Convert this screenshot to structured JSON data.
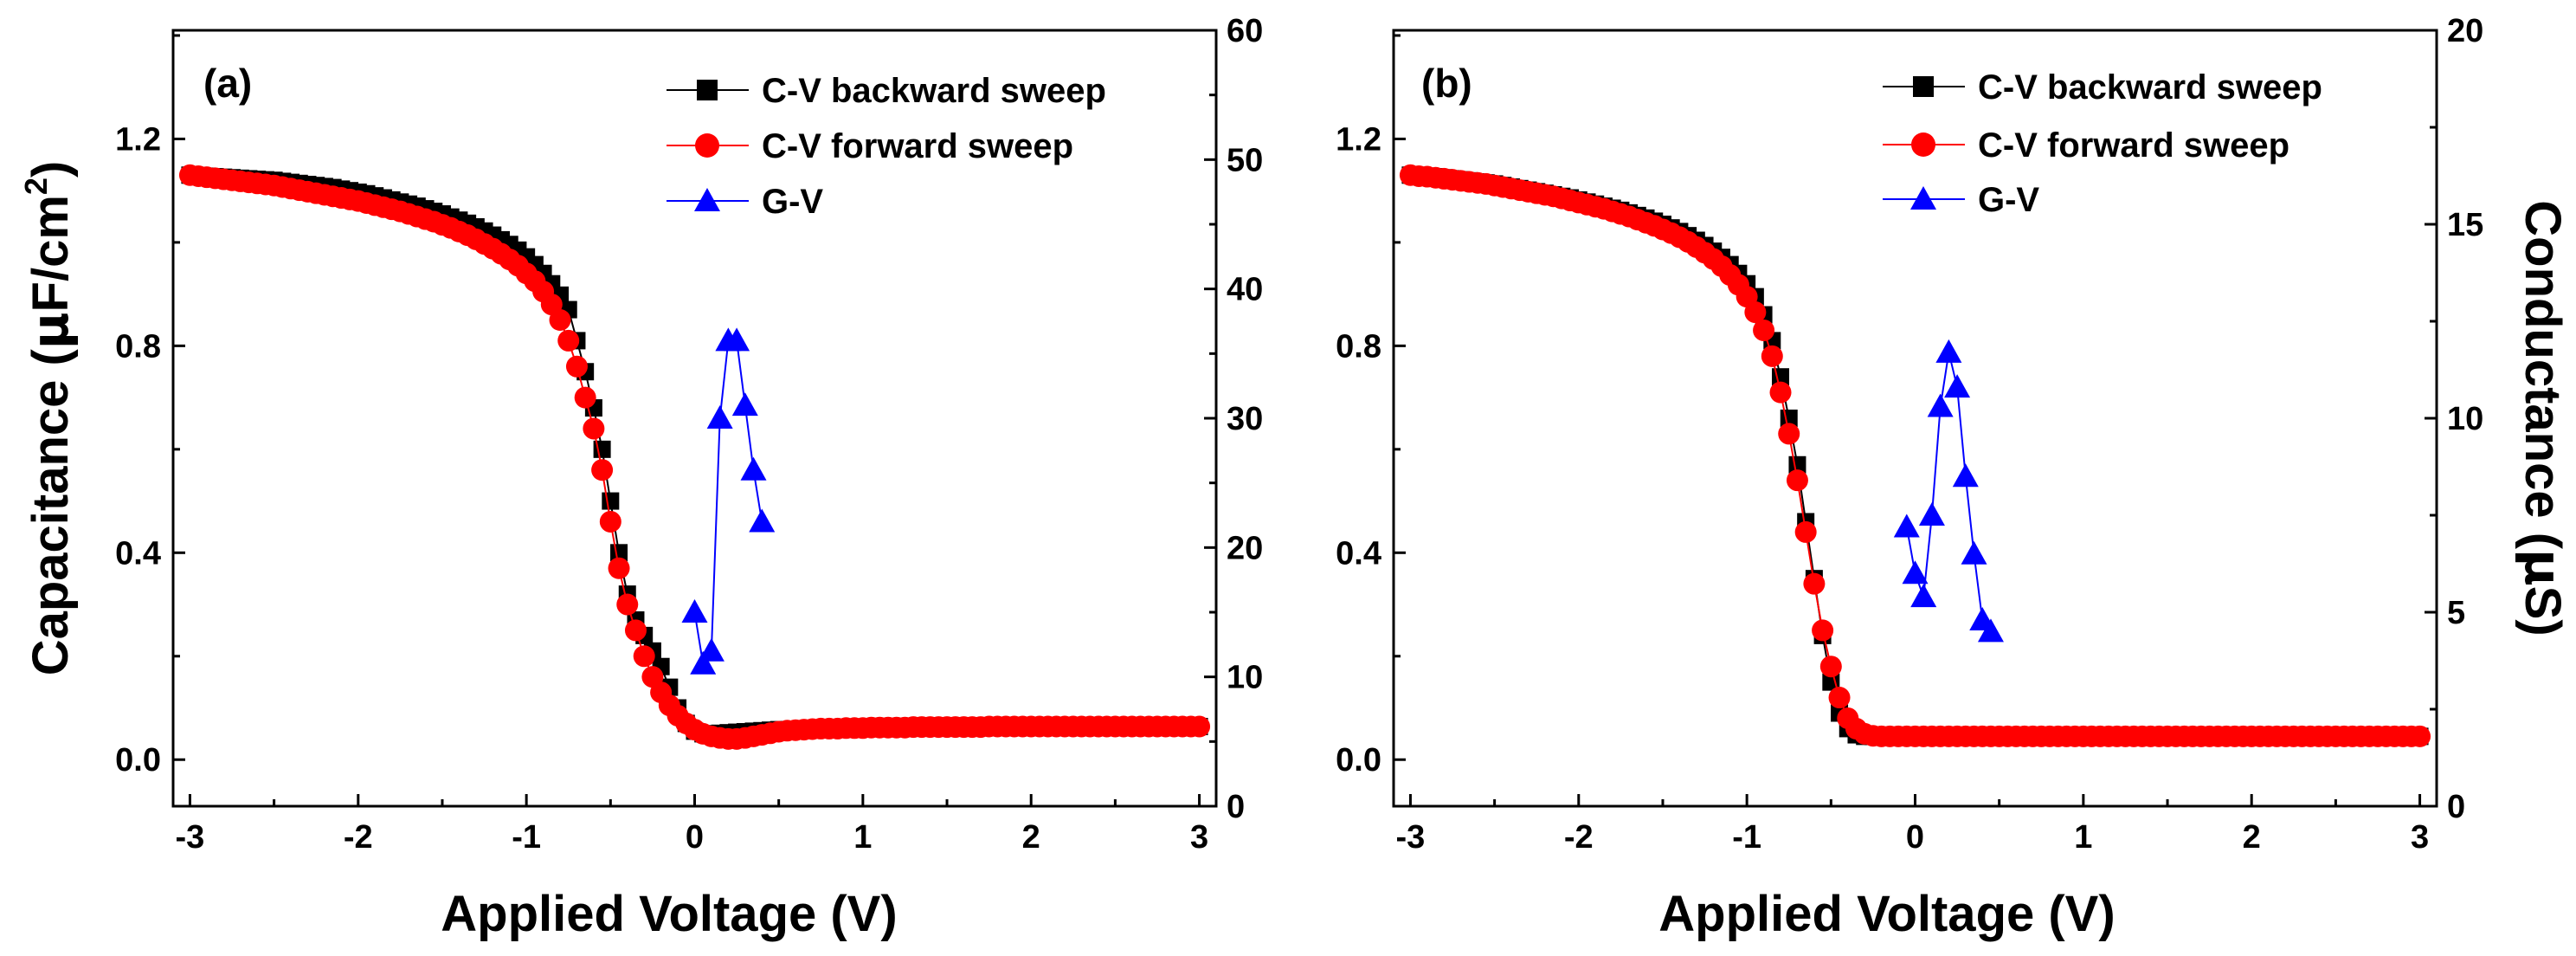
{
  "chart_data": [
    {
      "type": "line",
      "panel": "(a)",
      "xlabel": "Applied Voltage (V)",
      "ylabel": "Capacitance (μF/cm²)",
      "ylabel_parts": {
        "pre": "Capacitance (",
        "mu": "μ",
        "mid": "F/cm",
        "sup": "2",
        "post": ")"
      },
      "y2label": "",
      "xlim": [
        -3.1,
        3.1
      ],
      "ylim": [
        -0.09,
        1.41
      ],
      "y2lim": [
        0,
        60
      ],
      "x_ticks": [
        -3,
        -2,
        -1,
        0,
        1,
        2,
        3
      ],
      "y_ticks": [
        0.0,
        0.4,
        0.8,
        1.2
      ],
      "y_tick_labels": [
        "0.0",
        "0.4",
        "0.8",
        "1.2"
      ],
      "y2_ticks": [
        0,
        10,
        20,
        30,
        40,
        50,
        60
      ],
      "legend_position": "top-right",
      "series": [
        {
          "name": "C-V backward sweep",
          "axis": "left",
          "color": "#000000",
          "marker": "square",
          "x_start": -3.0,
          "x_step": 0.05,
          "values": [
            1.13,
            1.129,
            1.128,
            1.127,
            1.126,
            1.125,
            1.124,
            1.123,
            1.122,
            1.121,
            1.12,
            1.118,
            1.116,
            1.114,
            1.112,
            1.11,
            1.108,
            1.106,
            1.103,
            1.1,
            1.097,
            1.094,
            1.09,
            1.086,
            1.082,
            1.078,
            1.074,
            1.07,
            1.065,
            1.06,
            1.055,
            1.049,
            1.043,
            1.037,
            1.03,
            1.022,
            1.014,
            1.005,
            0.996,
            0.985,
            0.972,
            0.957,
            0.94,
            0.92,
            0.898,
            0.87,
            0.81,
            0.75,
            0.68,
            0.6,
            0.5,
            0.4,
            0.32,
            0.27,
            0.24,
            0.21,
            0.18,
            0.14,
            0.1,
            0.07,
            0.055,
            0.05,
            0.05,
            0.051,
            0.052,
            0.053,
            0.054,
            0.055,
            0.056,
            0.057,
            0.058,
            0.058,
            0.059,
            0.059,
            0.06,
            0.06,
            0.06,
            0.06,
            0.06,
            0.06,
            0.061,
            0.061,
            0.061,
            0.061,
            0.061,
            0.062,
            0.062,
            0.062,
            0.062,
            0.062,
            0.062,
            0.062,
            0.062,
            0.062,
            0.062,
            0.063,
            0.063,
            0.063,
            0.063,
            0.063,
            0.063,
            0.063,
            0.063,
            0.063,
            0.063,
            0.063,
            0.063,
            0.063,
            0.063,
            0.064,
            0.064,
            0.064,
            0.064,
            0.064,
            0.064,
            0.064,
            0.064,
            0.064,
            0.064,
            0.064,
            0.064
          ]
        },
        {
          "name": "C-V forward sweep",
          "axis": "left",
          "color": "#ff0000",
          "marker": "circle",
          "x_start": -3.0,
          "x_step": 0.05,
          "values": [
            1.13,
            1.128,
            1.126,
            1.124,
            1.122,
            1.12,
            1.118,
            1.116,
            1.114,
            1.112,
            1.11,
            1.107,
            1.104,
            1.101,
            1.098,
            1.095,
            1.092,
            1.089,
            1.086,
            1.083,
            1.08,
            1.076,
            1.072,
            1.068,
            1.064,
            1.06,
            1.055,
            1.05,
            1.045,
            1.04,
            1.034,
            1.028,
            1.021,
            1.014,
            1.006,
            0.997,
            0.988,
            0.978,
            0.967,
            0.955,
            0.94,
            0.925,
            0.905,
            0.88,
            0.85,
            0.81,
            0.76,
            0.7,
            0.64,
            0.56,
            0.46,
            0.37,
            0.3,
            0.25,
            0.2,
            0.16,
            0.13,
            0.105,
            0.085,
            0.07,
            0.058,
            0.05,
            0.045,
            0.042,
            0.04,
            0.04,
            0.042,
            0.045,
            0.048,
            0.051,
            0.054,
            0.056,
            0.057,
            0.058,
            0.059,
            0.06,
            0.06,
            0.06,
            0.061,
            0.061,
            0.061,
            0.062,
            0.062,
            0.062,
            0.062,
            0.062,
            0.063,
            0.063,
            0.063,
            0.063,
            0.063,
            0.063,
            0.063,
            0.063,
            0.063,
            0.064,
            0.064,
            0.064,
            0.064,
            0.064,
            0.064,
            0.064,
            0.064,
            0.064,
            0.064,
            0.064,
            0.064,
            0.064,
            0.064,
            0.064,
            0.064,
            0.064,
            0.064,
            0.064,
            0.064,
            0.064,
            0.064,
            0.064,
            0.064,
            0.064,
            0.064
          ]
        },
        {
          "name": "G-V",
          "axis": "right",
          "color": "#0000ff",
          "marker": "triangle",
          "x": [
            0.0,
            0.05,
            0.1,
            0.15,
            0.2,
            0.25,
            0.3,
            0.35,
            0.4
          ],
          "values": [
            15,
            11,
            12,
            30,
            36,
            36,
            31,
            26,
            22
          ]
        }
      ]
    },
    {
      "type": "line",
      "panel": "(b)",
      "xlabel": "Applied Voltage (V)",
      "ylabel": "",
      "y2label": "Conductance (μS)",
      "y2label_parts": {
        "pre": "Conductance (",
        "mu": "μ",
        "post": "S)"
      },
      "xlim": [
        -3.1,
        3.1
      ],
      "ylim": [
        -0.09,
        1.41
      ],
      "y2lim": [
        0,
        20
      ],
      "x_ticks": [
        -3,
        -2,
        -1,
        0,
        1,
        2,
        3
      ],
      "y_ticks": [
        0.0,
        0.4,
        0.8,
        1.2
      ],
      "y_tick_labels": [
        "0.0",
        "0.4",
        "0.8",
        "1.2"
      ],
      "y2_ticks": [
        0,
        5,
        10,
        15,
        20
      ],
      "legend_position": "top-right",
      "series": [
        {
          "name": "C-V backward sweep",
          "axis": "left",
          "color": "#000000",
          "marker": "square",
          "x_start": -3.0,
          "x_step": 0.05,
          "values": [
            1.13,
            1.129,
            1.128,
            1.127,
            1.125,
            1.123,
            1.121,
            1.119,
            1.117,
            1.115,
            1.113,
            1.11,
            1.107,
            1.104,
            1.101,
            1.098,
            1.095,
            1.092,
            1.089,
            1.086,
            1.082,
            1.078,
            1.074,
            1.07,
            1.066,
            1.062,
            1.057,
            1.052,
            1.047,
            1.041,
            1.035,
            1.028,
            1.021,
            1.013,
            1.004,
            0.994,
            0.983,
            0.971,
            0.957,
            0.94,
            0.92,
            0.895,
            0.86,
            0.81,
            0.74,
            0.66,
            0.57,
            0.46,
            0.35,
            0.24,
            0.15,
            0.09,
            0.06,
            0.048,
            0.045,
            0.045,
            0.045,
            0.045,
            0.045,
            0.045,
            0.045,
            0.045,
            0.045,
            0.045,
            0.045,
            0.045,
            0.045,
            0.045,
            0.045,
            0.045,
            0.045,
            0.045,
            0.045,
            0.045,
            0.045,
            0.045,
            0.045,
            0.045,
            0.045,
            0.045,
            0.045,
            0.045,
            0.045,
            0.045,
            0.045,
            0.045,
            0.045,
            0.045,
            0.045,
            0.045,
            0.045,
            0.045,
            0.045,
            0.045,
            0.045,
            0.045,
            0.045,
            0.045,
            0.045,
            0.045,
            0.045,
            0.045,
            0.045,
            0.045,
            0.045,
            0.045,
            0.045,
            0.045,
            0.045,
            0.045,
            0.045,
            0.045,
            0.045,
            0.045,
            0.045,
            0.045,
            0.045,
            0.045,
            0.045,
            0.045,
            0.045
          ]
        },
        {
          "name": "C-V forward sweep",
          "axis": "left",
          "color": "#ff0000",
          "marker": "circle",
          "x_start": -3.0,
          "x_step": 0.05,
          "values": [
            1.13,
            1.128,
            1.127,
            1.125,
            1.123,
            1.121,
            1.119,
            1.117,
            1.115,
            1.113,
            1.11,
            1.107,
            1.104,
            1.101,
            1.098,
            1.095,
            1.092,
            1.089,
            1.085,
            1.081,
            1.077,
            1.073,
            1.069,
            1.065,
            1.06,
            1.055,
            1.05,
            1.044,
            1.038,
            1.032,
            1.025,
            1.018,
            1.01,
            1.001,
            0.991,
            0.98,
            0.968,
            0.954,
            0.937,
            0.918,
            0.895,
            0.865,
            0.83,
            0.78,
            0.71,
            0.63,
            0.54,
            0.44,
            0.34,
            0.25,
            0.18,
            0.12,
            0.08,
            0.06,
            0.05,
            0.046,
            0.045,
            0.045,
            0.045,
            0.045,
            0.045,
            0.045,
            0.045,
            0.045,
            0.045,
            0.045,
            0.045,
            0.045,
            0.045,
            0.045,
            0.045,
            0.045,
            0.045,
            0.045,
            0.045,
            0.045,
            0.045,
            0.045,
            0.045,
            0.045,
            0.045,
            0.045,
            0.045,
            0.045,
            0.045,
            0.045,
            0.045,
            0.045,
            0.045,
            0.045,
            0.045,
            0.045,
            0.045,
            0.045,
            0.045,
            0.045,
            0.045,
            0.045,
            0.045,
            0.045,
            0.045,
            0.045,
            0.045,
            0.045,
            0.045,
            0.045,
            0.045,
            0.045,
            0.045,
            0.045,
            0.045,
            0.045,
            0.045,
            0.045,
            0.045,
            0.045,
            0.045,
            0.045,
            0.045,
            0.045,
            0.045
          ]
        },
        {
          "name": "G-V",
          "axis": "right",
          "color": "#0000ff",
          "marker": "triangle",
          "x": [
            -0.05,
            0.0,
            0.05,
            0.1,
            0.15,
            0.2,
            0.25,
            0.3,
            0.35,
            0.4,
            0.45
          ],
          "values": [
            7.2,
            6.0,
            5.4,
            7.5,
            10.3,
            11.7,
            10.8,
            8.5,
            6.5,
            4.8,
            4.5
          ]
        }
      ]
    }
  ]
}
